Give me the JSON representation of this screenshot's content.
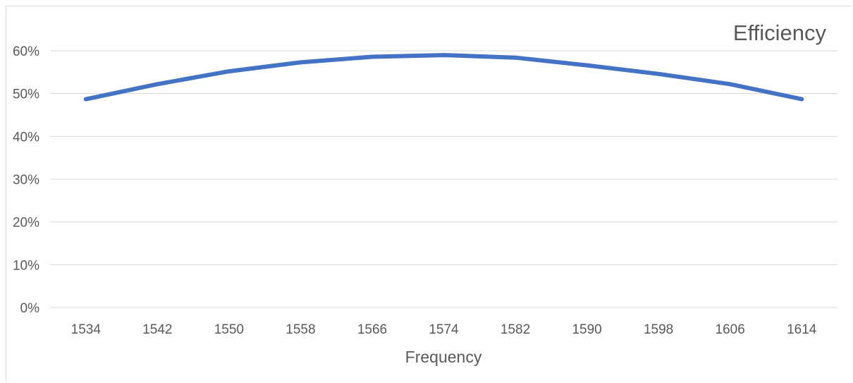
{
  "chart_data": {
    "type": "line",
    "title": "Efficiency",
    "xlabel": "Frequency",
    "ylabel": "",
    "categories": [
      "1534",
      "1542",
      "1550",
      "1558",
      "1566",
      "1574",
      "1582",
      "1590",
      "1598",
      "1606",
      "1614"
    ],
    "series": [
      {
        "values": [
          0.487,
          0.522,
          0.552,
          0.573,
          0.586,
          0.59,
          0.584,
          0.566,
          0.546,
          0.522,
          0.487
        ],
        "color": "#4472c4"
      }
    ],
    "yticks": [
      "0%",
      "10%",
      "20%",
      "30%",
      "40%",
      "50%",
      "60%"
    ],
    "ylim": [
      0,
      0.6
    ],
    "grid": true,
    "legend": "none"
  }
}
